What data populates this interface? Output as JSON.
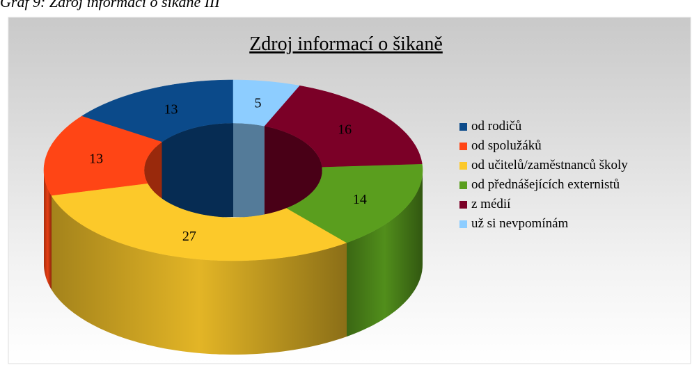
{
  "caption": "Graf 9: Zdroj informací o šikaně III",
  "chart_data": {
    "type": "doughnut",
    "title": "Zdroj informací o šikaně",
    "categories": [
      "od rodičů",
      "od spolužáků",
      "od učitelů/zaměstnanců školy",
      "od přednášejících externistů",
      "z médií",
      "už si nevpomínám"
    ],
    "values": [
      13,
      13,
      27,
      14,
      16,
      5
    ],
    "colors": [
      "#0b4a8a",
      "#ff4515",
      "#fcc92a",
      "#5a9e1e",
      "#7b0027",
      "#8dcdff"
    ],
    "legend": "right"
  }
}
